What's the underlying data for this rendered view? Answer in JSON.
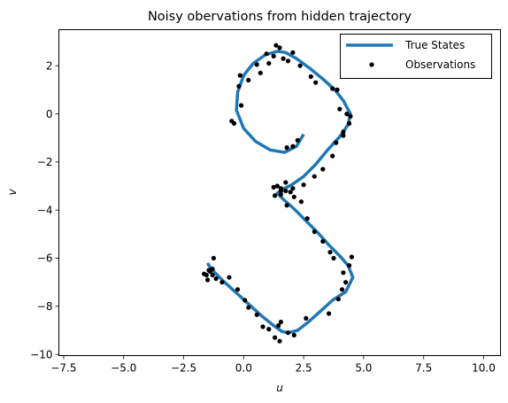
{
  "chart_data": {
    "type": "scatter",
    "title": "Noisy obervations from hidden trajectory",
    "xlabel": "u",
    "ylabel": "v",
    "xlim": [
      -7.7,
      10.7
    ],
    "ylim": [
      -10.05,
      3.5
    ],
    "xticks": [
      -7.5,
      -5.0,
      -2.5,
      0.0,
      2.5,
      5.0,
      7.5,
      10.0
    ],
    "xtick_labels": [
      "−7.5",
      "−5.0",
      "−2.5",
      "0.0",
      "2.5",
      "5.0",
      "7.5",
      "10.0"
    ],
    "yticks": [
      -10,
      -8,
      -6,
      -4,
      -2,
      0,
      2
    ],
    "ytick_labels": [
      "−10",
      "−8",
      "−6",
      "−4",
      "−2",
      "0",
      "2"
    ],
    "grid": false,
    "legend_position": "top-right",
    "series": [
      {
        "name": "True States",
        "kind": "line",
        "color": "#1f77b4",
        "x": [
          2.5,
          2.2,
          1.7,
          1.1,
          0.5,
          0.0,
          -0.3,
          -0.25,
          0.0,
          0.4,
          0.9,
          1.4,
          1.75,
          2.2,
          2.75,
          3.3,
          3.8,
          4.15,
          4.45,
          4.35,
          4.0,
          3.5,
          3.0,
          2.5,
          2.0,
          1.6,
          1.4,
          1.65,
          2.1,
          2.6,
          3.1,
          3.55,
          4.0,
          4.35,
          4.55,
          4.25,
          3.7,
          3.2,
          2.7,
          2.25,
          1.85,
          1.6,
          1.25,
          0.75,
          0.2,
          -0.35,
          -0.85,
          -1.25,
          -1.45,
          -1.5
        ],
        "y": [
          -0.85,
          -1.35,
          -1.6,
          -1.5,
          -1.15,
          -0.6,
          0.15,
          0.9,
          1.6,
          2.1,
          2.45,
          2.6,
          2.55,
          2.3,
          1.9,
          1.45,
          1.0,
          0.55,
          0.0,
          -0.45,
          -0.95,
          -1.5,
          -2.1,
          -2.6,
          -2.95,
          -3.15,
          -3.3,
          -3.55,
          -3.95,
          -4.45,
          -4.95,
          -5.45,
          -5.9,
          -6.3,
          -6.8,
          -7.4,
          -7.75,
          -8.2,
          -8.65,
          -9.0,
          -9.1,
          -9.05,
          -8.8,
          -8.4,
          -7.9,
          -7.4,
          -6.95,
          -6.55,
          -6.3,
          -6.2
        ]
      },
      {
        "name": "Observations",
        "kind": "scatter",
        "color": "#000000",
        "x": [
          2.05,
          1.35,
          0.95,
          0.55,
          -0.2,
          -0.1,
          -0.5,
          -0.4,
          -0.15,
          0.2,
          0.7,
          1.05,
          1.25,
          1.5,
          1.65,
          1.85,
          2.35,
          2.8,
          3.0,
          3.7,
          3.9,
          4.0,
          4.3,
          4.45,
          4.4,
          4.15,
          3.85,
          4.15,
          3.7,
          3.3,
          2.95,
          2.5,
          2.05,
          1.75,
          1.55,
          1.3,
          1.25,
          1.4,
          1.55,
          1.75,
          1.55,
          1.95,
          2.1,
          1.8,
          2.4,
          2.65,
          2.95,
          3.3,
          3.6,
          3.75,
          4.15,
          4.4,
          4.5,
          4.25,
          4.1,
          3.95,
          3.55,
          2.6,
          1.85,
          2.1,
          1.5,
          1.3,
          1.55,
          1.05,
          1.45,
          0.8,
          0.55,
          0.2,
          0.05,
          -0.25,
          -0.6,
          -0.9,
          -1.15,
          -1.3,
          -1.25,
          -1.55,
          -1.4,
          -1.3,
          -1.5,
          -1.65,
          -1.45,
          1.8,
          2.05,
          2.25
        ],
        "y": [
          2.55,
          2.85,
          2.5,
          2.05,
          1.15,
          0.35,
          -0.3,
          -0.4,
          1.6,
          1.4,
          1.7,
          2.1,
          2.4,
          2.75,
          2.3,
          2.2,
          2.0,
          1.55,
          1.3,
          1.05,
          1.0,
          0.2,
          0.0,
          -0.1,
          -0.4,
          -0.75,
          -1.2,
          -0.9,
          -1.75,
          -2.3,
          -2.6,
          -2.95,
          -3.1,
          -2.85,
          -3.2,
          -3.4,
          -3.05,
          -3.0,
          -3.1,
          -3.2,
          -3.35,
          -3.25,
          -3.45,
          -3.8,
          -3.65,
          -4.35,
          -4.9,
          -5.3,
          -5.75,
          -6.0,
          -6.6,
          -6.3,
          -5.95,
          -7.0,
          -7.3,
          -7.7,
          -8.3,
          -8.5,
          -9.1,
          -9.2,
          -9.45,
          -9.3,
          -8.65,
          -8.95,
          -8.8,
          -8.85,
          -8.35,
          -8.05,
          -7.75,
          -7.3,
          -6.8,
          -7.0,
          -6.85,
          -6.45,
          -6.0,
          -6.7,
          -6.55,
          -6.7,
          -6.9,
          -6.65,
          -6.5,
          -1.4,
          -1.35,
          -1.1
        ]
      }
    ]
  }
}
